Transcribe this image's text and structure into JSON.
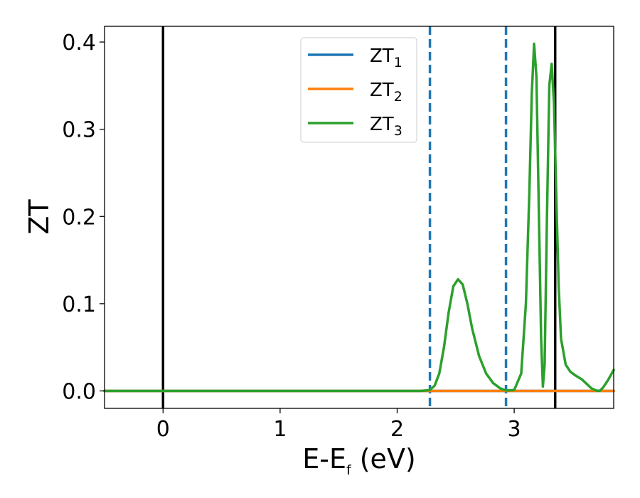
{
  "chart_data": {
    "type": "line",
    "title": "",
    "xlabel": "E-E",
    "xlabel_sub": "f",
    "xlabel_unit": " (eV)",
    "ylabel": "ZT",
    "xlim": [
      -0.5,
      3.85
    ],
    "ylim": [
      -0.02,
      0.418
    ],
    "xticks": [
      0,
      1,
      2,
      3
    ],
    "xtick_labels": [
      "0",
      "1",
      "2",
      "3"
    ],
    "yticks": [
      0.0,
      0.1,
      0.2,
      0.3,
      0.4
    ],
    "ytick_labels": [
      "0.0",
      "0.1",
      "0.2",
      "0.3",
      "0.4"
    ],
    "grid": false,
    "legend_position": "top-center",
    "series": [
      {
        "name": "ZT",
        "name_sub": "1",
        "color": "#1f77b4",
        "x": [
          -0.5,
          3.85
        ],
        "y": [
          0.0,
          0.0
        ]
      },
      {
        "name": "ZT",
        "name_sub": "2",
        "color": "#ff7f0e",
        "x": [
          -0.5,
          3.85
        ],
        "y": [
          0.0,
          0.0
        ]
      },
      {
        "name": "ZT",
        "name_sub": "3",
        "color": "#2ca02c",
        "x": [
          -0.5,
          2.2,
          2.28,
          2.32,
          2.36,
          2.4,
          2.44,
          2.48,
          2.52,
          2.56,
          2.6,
          2.64,
          2.7,
          2.76,
          2.82,
          2.88,
          2.93,
          3.0,
          3.06,
          3.1,
          3.13,
          3.15,
          3.17,
          3.19,
          3.21,
          3.23,
          3.245,
          3.26,
          3.28,
          3.3,
          3.32,
          3.34,
          3.36,
          3.38,
          3.4,
          3.44,
          3.48,
          3.52,
          3.58,
          3.62,
          3.66,
          3.7,
          3.73,
          3.76,
          3.8,
          3.85
        ],
        "y": [
          0.0,
          0.0,
          0.001,
          0.006,
          0.02,
          0.05,
          0.09,
          0.12,
          0.128,
          0.122,
          0.1,
          0.072,
          0.04,
          0.02,
          0.009,
          0.003,
          0.0005,
          0.001,
          0.02,
          0.1,
          0.23,
          0.34,
          0.398,
          0.36,
          0.21,
          0.06,
          0.005,
          0.03,
          0.2,
          0.35,
          0.375,
          0.33,
          0.22,
          0.12,
          0.06,
          0.03,
          0.022,
          0.018,
          0.013,
          0.008,
          0.003,
          0.0005,
          0.0,
          0.004,
          0.012,
          0.024
        ]
      }
    ],
    "vlines": [
      {
        "x": 0.0,
        "style": "solid",
        "color": "#000000"
      },
      {
        "x": 3.35,
        "style": "solid",
        "color": "#000000"
      },
      {
        "x": 2.28,
        "style": "dashed",
        "color": "#1f77b4"
      },
      {
        "x": 2.93,
        "style": "dashed",
        "color": "#1f77b4"
      }
    ]
  }
}
